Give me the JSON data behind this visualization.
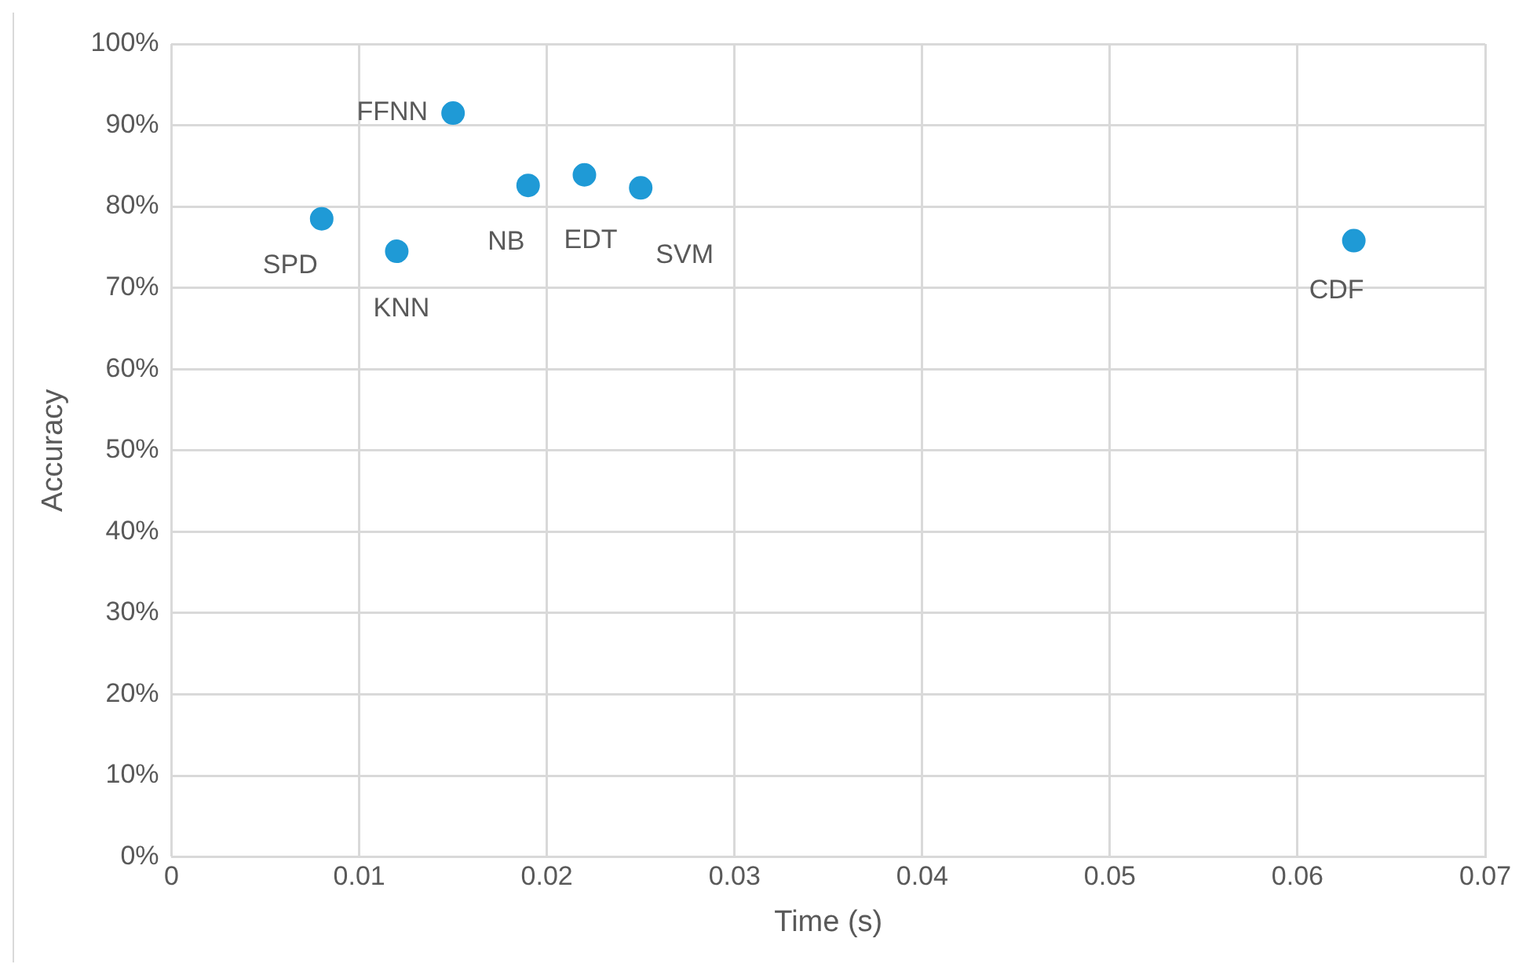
{
  "chart_data": {
    "type": "scatter",
    "xlabel": "Time (s)",
    "ylabel": "Accuracy",
    "series": [
      {
        "color": "#1f9ad6",
        "x": [
          0.008,
          0.012,
          0.015,
          0.019,
          0.022,
          0.025,
          0.063
        ],
        "values": [
          78.5,
          74.5,
          91.5,
          82.6,
          83.9,
          82.3,
          75.8
        ]
      }
    ],
    "xlim": [
      0,
      0.07
    ],
    "xticks": [
      0,
      0.01,
      0.02,
      0.03,
      0.04,
      0.05,
      0.06,
      0.07
    ],
    "ylim": [
      0,
      100
    ],
    "yticks": [
      {
        "value": 0,
        "label": "0%"
      },
      {
        "value": 10,
        "label": "10%"
      },
      {
        "value": 20,
        "label": "20%"
      },
      {
        "value": 30,
        "label": "30%"
      },
      {
        "value": 40,
        "label": "40%"
      },
      {
        "value": 50,
        "label": "50%"
      },
      {
        "value": 60,
        "label": "60%"
      },
      {
        "value": 70,
        "label": "70%"
      },
      {
        "value": 80,
        "label": "80%"
      },
      {
        "value": 90,
        "label": "90%"
      },
      {
        "value": 100,
        "label": "100%"
      }
    ],
    "annotations": [
      {
        "text": "SPD",
        "x": 0.008,
        "y": 78.5
      },
      {
        "text": "KNN",
        "x": 0.012,
        "y": 74.5
      },
      {
        "text": "FFNN",
        "x": 0.015,
        "y": 91.5
      },
      {
        "text": "NB",
        "x": 0.019,
        "y": 82.6
      },
      {
        "text": "EDT",
        "x": 0.022,
        "y": 83.9
      },
      {
        "text": "SVM",
        "x": 0.025,
        "y": 82.3
      },
      {
        "text": "CDF",
        "x": 0.063,
        "y": 75.8
      }
    ],
    "grid": true,
    "marker": "circle",
    "legend": false
  }
}
